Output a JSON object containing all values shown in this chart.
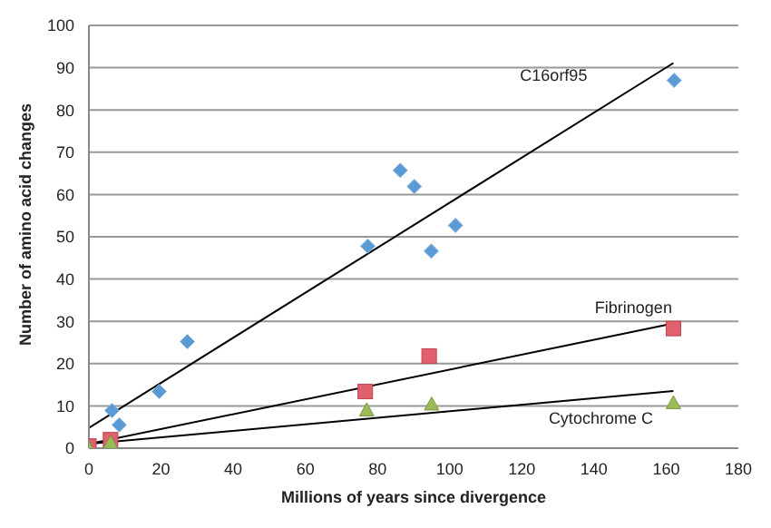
{
  "chart_data": {
    "type": "scatter",
    "xlabel": "Millions of years since divergence",
    "ylabel": "Number of amino acid changes",
    "xlim": [
      0,
      180
    ],
    "xticks": [
      0,
      20,
      40,
      60,
      80,
      100,
      120,
      140,
      160,
      180
    ],
    "ylim": [
      0,
      100
    ],
    "yticks": [
      0,
      10,
      20,
      30,
      40,
      50,
      60,
      70,
      80,
      90,
      100
    ],
    "grid": "y",
    "legend": false,
    "series": [
      {
        "marker": "diamond",
        "color": "#5b9bd5",
        "x": [
          6.4,
          8.4,
          19.5,
          27.3,
          77.3,
          86.3,
          90.2,
          94.9,
          101.6,
          162.2
        ],
        "values": [
          8.9,
          5.5,
          13.4,
          25.2,
          47.8,
          65.7,
          61.9,
          46.6,
          52.7,
          87
        ]
      },
      {
        "marker": "square",
        "color": "#e0606e",
        "x": [
          0,
          6,
          76.6,
          94.3,
          162
        ],
        "values": [
          0.5,
          2,
          13.4,
          21.8,
          28.3
        ]
      },
      {
        "marker": "triangle",
        "color": "#9bbb59",
        "x": [
          0,
          6,
          77,
          95,
          162
        ],
        "values": [
          0,
          1.3,
          9,
          10.4,
          10.7
        ]
      },
      {
        "type": "line",
        "name": "C16orf95",
        "color": "#000000",
        "x": [
          0,
          162
        ],
        "values": [
          4.8,
          91.1
        ]
      },
      {
        "type": "line",
        "name": "Fibrinogen",
        "color": "#000000",
        "x": [
          0,
          162
        ],
        "values": [
          1,
          29.5
        ]
      },
      {
        "type": "line",
        "name": "Cytochrome C",
        "color": "#000000",
        "x": [
          0,
          162
        ],
        "values": [
          1,
          13.5
        ]
      }
    ]
  }
}
